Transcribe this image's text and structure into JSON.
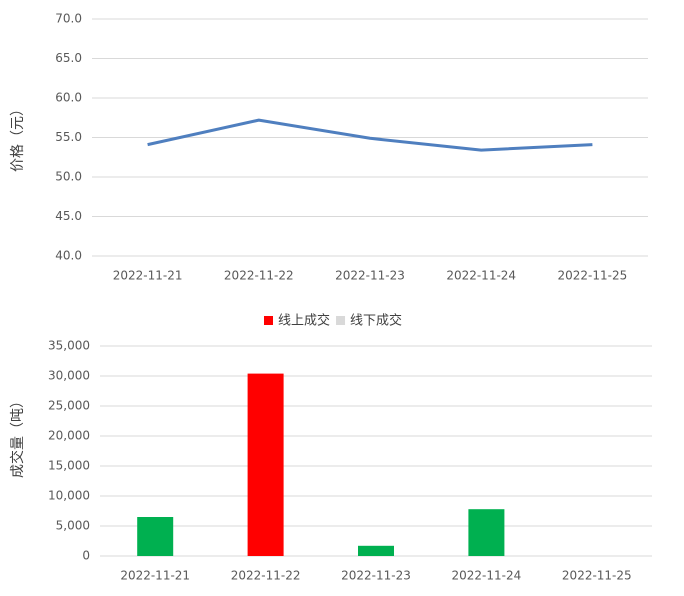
{
  "chart_data": [
    {
      "type": "line",
      "y_label": "价格（元）",
      "categories": [
        "2022-11-21",
        "2022-11-22",
        "2022-11-23",
        "2022-11-24",
        "2022-11-25"
      ],
      "series": [
        {
          "name": "价格",
          "color": "#4f7fbf",
          "values": [
            54.1,
            57.2,
            54.9,
            53.4,
            54.1
          ]
        }
      ],
      "ylim": [
        40,
        70
      ],
      "yticks": [
        {
          "value": 40,
          "label": "40.0"
        },
        {
          "value": 45,
          "label": "45.0"
        },
        {
          "value": 50,
          "label": "50.0"
        },
        {
          "value": 55,
          "label": "55.0"
        },
        {
          "value": 60,
          "label": "60.0"
        },
        {
          "value": 65,
          "label": "65.0"
        },
        {
          "value": 70,
          "label": "70.0"
        }
      ],
      "grid": true
    },
    {
      "type": "bar",
      "y_label": "成交量（吨）",
      "categories": [
        "2022-11-21",
        "2022-11-22",
        "2022-11-23",
        "2022-11-24",
        "2022-11-25"
      ],
      "series": [
        {
          "name": "线上成交",
          "color": "#ff0000",
          "bar_colors": [
            "#00b050",
            "#ff0000",
            "#00b050",
            "#00b050",
            null
          ],
          "values": [
            6500,
            30400,
            1700,
            7800,
            null
          ]
        },
        {
          "name": "线下成交",
          "color": "#d9d9d9",
          "values": [
            null,
            null,
            null,
            null,
            null
          ]
        }
      ],
      "ylim": [
        0,
        35000
      ],
      "yticks": [
        {
          "value": 0,
          "label": "0"
        },
        {
          "value": 5000,
          "label": "5,000"
        },
        {
          "value": 10000,
          "label": "10,000"
        },
        {
          "value": 15000,
          "label": "15,000"
        },
        {
          "value": 20000,
          "label": "20,000"
        },
        {
          "value": 25000,
          "label": "25,000"
        },
        {
          "value": 30000,
          "label": "30,000"
        },
        {
          "value": 35000,
          "label": "35,000"
        }
      ],
      "grid": true,
      "legend": "top"
    }
  ]
}
